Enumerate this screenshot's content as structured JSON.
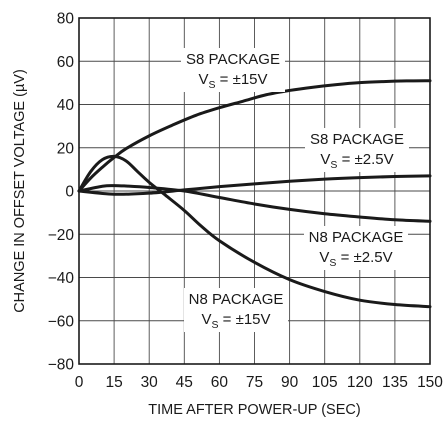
{
  "chart_data": {
    "type": "line",
    "xlabel": "TIME AFTER POWER-UP (SEC)",
    "ylabel": "CHANGE IN OFFSET VOLTAGE (µV)",
    "xlim": [
      0,
      150
    ],
    "ylim": [
      -80,
      80
    ],
    "xticks": [
      0,
      15,
      30,
      45,
      60,
      75,
      90,
      105,
      120,
      135,
      150
    ],
    "yticks": [
      -80,
      -60,
      -40,
      -20,
      0,
      20,
      40,
      60,
      80
    ],
    "grid": true,
    "legend": "none",
    "series": [
      {
        "name": "S8 PACKAGE V_S = ±15V",
        "x": [
          0,
          5,
          10,
          15,
          20,
          30,
          40,
          50,
          60,
          70,
          80,
          90,
          100,
          110,
          120,
          130,
          140,
          150
        ],
        "values": [
          0,
          6,
          11,
          15.5,
          19.5,
          25.5,
          30.5,
          35,
          38.5,
          41.5,
          44.5,
          46.5,
          48,
          49.2,
          50.1,
          50.6,
          50.9,
          51
        ]
      },
      {
        "name": "S8 PACKAGE V_S = ±2.5V",
        "x": [
          0,
          15,
          30,
          45,
          60,
          75,
          90,
          105,
          120,
          135,
          150
        ],
        "values": [
          0,
          -1.5,
          -1,
          0.5,
          2,
          3.3,
          4.5,
          5.5,
          6.2,
          6.7,
          7
        ]
      },
      {
        "name": "N8 PACKAGE V_S = ±2.5V",
        "x": [
          0,
          10,
          15,
          20,
          30,
          45,
          60,
          75,
          90,
          105,
          120,
          135,
          150
        ],
        "values": [
          0,
          2.2,
          2.5,
          2.3,
          1.6,
          0,
          -3,
          -6,
          -8.5,
          -10.5,
          -12,
          -13.3,
          -14
        ]
      },
      {
        "name": "N8 PACKAGE V_S = ±15V",
        "x": [
          0,
          5,
          10,
          15,
          20,
          25,
          30,
          37,
          45,
          52,
          60,
          75,
          90,
          105,
          120,
          135,
          150
        ],
        "values": [
          0,
          9,
          14.5,
          16,
          14,
          9,
          4,
          -2,
          -9,
          -16,
          -23,
          -33,
          -41,
          -46.5,
          -50.5,
          -52.5,
          -53.5
        ]
      }
    ],
    "annotations": [
      {
        "line1": "S8 PACKAGE",
        "v": "V",
        "sub": "S",
        "rest": " = ±15V"
      },
      {
        "line1": "S8 PACKAGE",
        "v": "V",
        "sub": "S",
        "rest": " = ±2.5V"
      },
      {
        "line1": "N8 PACKAGE",
        "v": "V",
        "sub": "S",
        "rest": " = ±2.5V"
      },
      {
        "line1": "N8 PACKAGE",
        "v": "V",
        "sub": "S",
        "rest": " = ±15V"
      }
    ]
  }
}
